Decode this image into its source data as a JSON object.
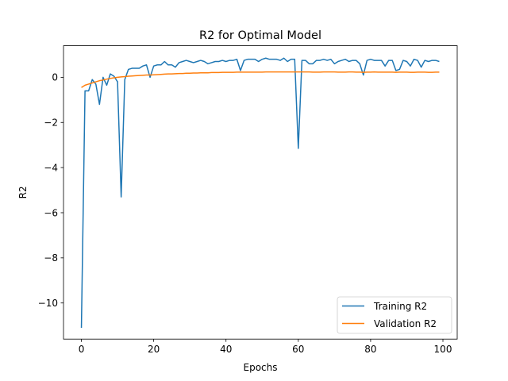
{
  "chart_data": {
    "type": "line",
    "title": "R2 for Optimal Model",
    "xlabel": "Epochs",
    "ylabel": "R2",
    "xlim": [
      -4.95,
      103.95
    ],
    "ylim": [
      -11.6,
      1.4
    ],
    "xticks": [
      0,
      20,
      40,
      60,
      80,
      100
    ],
    "yticks": [
      -10,
      -8,
      -6,
      -4,
      -2,
      0
    ],
    "ytick_labels": [
      "−10",
      "−8",
      "−6",
      "−4",
      "−2",
      "0"
    ],
    "grid": false,
    "legend_position": "lower-right",
    "series": [
      {
        "name": "Training R2",
        "color": "#1f77b4",
        "x": [
          0,
          1,
          2,
          3,
          4,
          5,
          6,
          7,
          8,
          9,
          10,
          11,
          12,
          13,
          14,
          15,
          16,
          17,
          18,
          19,
          20,
          21,
          22,
          23,
          24,
          25,
          26,
          27,
          28,
          29,
          30,
          31,
          32,
          33,
          34,
          35,
          36,
          37,
          38,
          39,
          40,
          41,
          42,
          43,
          44,
          45,
          46,
          47,
          48,
          49,
          50,
          51,
          52,
          53,
          54,
          55,
          56,
          57,
          58,
          59,
          60,
          61,
          62,
          63,
          64,
          65,
          66,
          67,
          68,
          69,
          70,
          71,
          72,
          73,
          74,
          75,
          76,
          77,
          78,
          79,
          80,
          81,
          82,
          83,
          84,
          85,
          86,
          87,
          88,
          89,
          90,
          91,
          92,
          93,
          94,
          95,
          96,
          97,
          98,
          99
        ],
        "values": [
          -11.1,
          -0.6,
          -0.6,
          -0.1,
          -0.3,
          -1.2,
          0.0,
          -0.35,
          0.15,
          0.05,
          -0.2,
          -5.3,
          -0.1,
          0.35,
          0.4,
          0.4,
          0.4,
          0.5,
          0.55,
          0.0,
          0.5,
          0.55,
          0.55,
          0.7,
          0.55,
          0.55,
          0.45,
          0.65,
          0.7,
          0.75,
          0.7,
          0.65,
          0.7,
          0.75,
          0.7,
          0.6,
          0.65,
          0.7,
          0.7,
          0.75,
          0.7,
          0.75,
          0.75,
          0.8,
          0.3,
          0.75,
          0.8,
          0.8,
          0.8,
          0.7,
          0.8,
          0.85,
          0.8,
          0.8,
          0.8,
          0.75,
          0.85,
          0.7,
          0.8,
          0.8,
          -3.15,
          0.75,
          0.75,
          0.6,
          0.6,
          0.75,
          0.75,
          0.8,
          0.75,
          0.8,
          0.6,
          0.7,
          0.75,
          0.8,
          0.7,
          0.75,
          0.75,
          0.6,
          0.1,
          0.75,
          0.8,
          0.75,
          0.75,
          0.75,
          0.5,
          0.75,
          0.75,
          0.3,
          0.35,
          0.75,
          0.7,
          0.5,
          0.8,
          0.75,
          0.45,
          0.75,
          0.7,
          0.75,
          0.75,
          0.7
        ]
      },
      {
        "name": "Validation R2",
        "color": "#ff7f0e",
        "x": [
          0,
          1,
          2,
          3,
          4,
          5,
          6,
          7,
          8,
          9,
          10,
          11,
          12,
          13,
          14,
          15,
          16,
          17,
          18,
          19,
          20,
          21,
          22,
          23,
          24,
          25,
          26,
          27,
          28,
          29,
          30,
          31,
          32,
          33,
          34,
          35,
          36,
          37,
          38,
          39,
          40,
          41,
          42,
          43,
          44,
          45,
          46,
          47,
          48,
          49,
          50,
          51,
          52,
          53,
          54,
          55,
          56,
          57,
          58,
          59,
          60,
          61,
          62,
          63,
          64,
          65,
          66,
          67,
          68,
          69,
          70,
          71,
          72,
          73,
          74,
          75,
          76,
          77,
          78,
          79,
          80,
          81,
          82,
          83,
          84,
          85,
          86,
          87,
          88,
          89,
          90,
          91,
          92,
          93,
          94,
          95,
          96,
          97,
          98,
          99
        ],
        "values": [
          -0.45,
          -0.35,
          -0.3,
          -0.25,
          -0.2,
          -0.15,
          -0.12,
          -0.08,
          -0.05,
          -0.02,
          0.0,
          0.02,
          0.03,
          0.05,
          0.06,
          0.07,
          0.08,
          0.09,
          0.1,
          0.1,
          0.11,
          0.12,
          0.13,
          0.14,
          0.15,
          0.15,
          0.16,
          0.17,
          0.17,
          0.18,
          0.18,
          0.19,
          0.19,
          0.2,
          0.2,
          0.2,
          0.21,
          0.21,
          0.21,
          0.22,
          0.22,
          0.22,
          0.22,
          0.23,
          0.23,
          0.23,
          0.23,
          0.23,
          0.23,
          0.23,
          0.23,
          0.24,
          0.24,
          0.24,
          0.24,
          0.24,
          0.24,
          0.24,
          0.24,
          0.24,
          0.24,
          0.24,
          0.24,
          0.24,
          0.23,
          0.23,
          0.23,
          0.24,
          0.24,
          0.24,
          0.24,
          0.23,
          0.23,
          0.23,
          0.24,
          0.24,
          0.23,
          0.23,
          0.22,
          0.23,
          0.23,
          0.24,
          0.23,
          0.23,
          0.23,
          0.23,
          0.23,
          0.22,
          0.23,
          0.23,
          0.23,
          0.22,
          0.22,
          0.23,
          0.23,
          0.23,
          0.22,
          0.22,
          0.23,
          0.23
        ]
      }
    ]
  }
}
